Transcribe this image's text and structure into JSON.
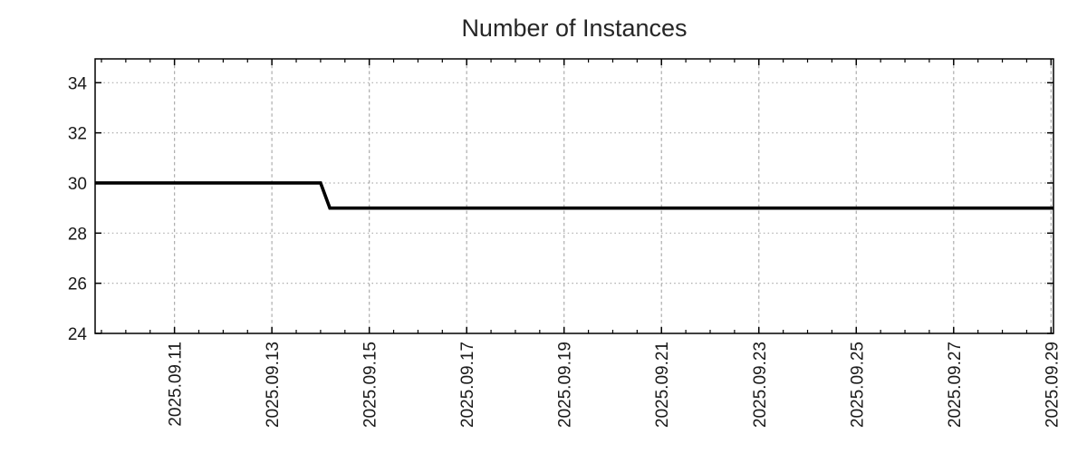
{
  "chart_data": {
    "type": "line",
    "title": "Number of Instances",
    "subtitle": "",
    "legend": {
      "visible": false
    },
    "x_axis": {
      "label": "",
      "unit": "date (September 2025, day-of-month as number)",
      "min_day": 9.37,
      "max_day": 29.05,
      "minor_tick_interval_days": 0.5,
      "grid": true,
      "major_ticks": [
        {
          "day": 11,
          "label": "2025.09.11"
        },
        {
          "day": 13,
          "label": "2025.09.13"
        },
        {
          "day": 15,
          "label": "2025.09.15"
        },
        {
          "day": 17,
          "label": "2025.09.17"
        },
        {
          "day": 19,
          "label": "2025.09.19"
        },
        {
          "day": 21,
          "label": "2025.09.21"
        },
        {
          "day": 23,
          "label": "2025.09.23"
        },
        {
          "day": 25,
          "label": "2025.09.25"
        },
        {
          "day": 27,
          "label": "2025.09.27"
        },
        {
          "day": 29,
          "label": "2025.09.29"
        }
      ]
    },
    "y_axis": {
      "label": "",
      "min": 24,
      "max": 34.95,
      "tick_interval": 2,
      "grid": true,
      "ticks": [
        24,
        26,
        28,
        30,
        32,
        34
      ]
    },
    "series": [
      {
        "name": "Number of Instances",
        "color": "#000000",
        "line_width": 3.6,
        "points": [
          {
            "time": "2025-09-09 ~09:00",
            "day": 9.37,
            "value": 30
          },
          {
            "time": "2025-09-14 ~00:00",
            "day": 14.0,
            "value": 30
          },
          {
            "time": "2025-09-14 ~04:30",
            "day": 14.19,
            "value": 29
          },
          {
            "time": "2025-09-29 ~01:00",
            "day": 29.05,
            "value": 29
          }
        ]
      }
    ],
    "colors": {
      "line": "#000000",
      "grid": "#adadad",
      "axis": "#000000",
      "title": "#262626",
      "tick_label": "#1a1a1a",
      "background": "#ffffff"
    }
  }
}
